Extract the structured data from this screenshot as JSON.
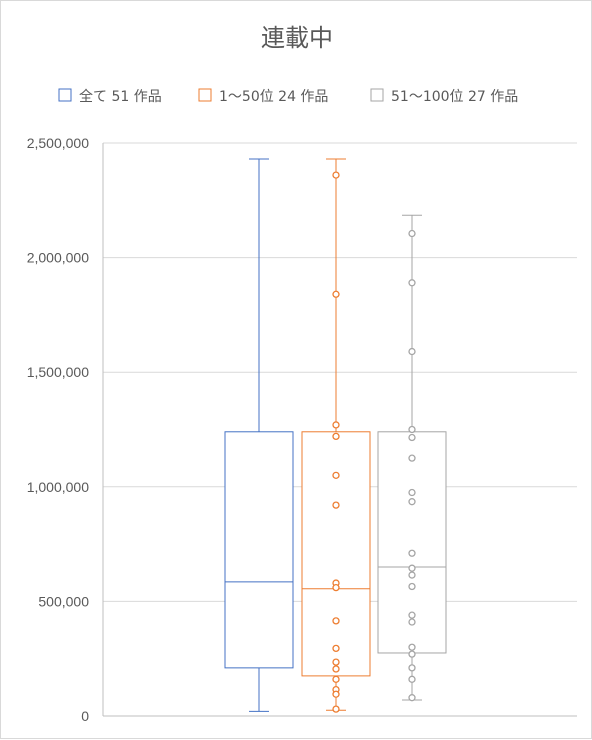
{
  "chart_data": {
    "type": "box",
    "title": "連載中",
    "ylim": [
      0,
      2500000
    ],
    "y_ticks": [
      "0",
      "500,000",
      "1,000,000",
      "1,500,000",
      "2,000,000",
      "2,500,000"
    ],
    "y_tick_values": [
      0,
      500000,
      1000000,
      1500000,
      2000000,
      2500000
    ],
    "grid": true,
    "legend_position": "top",
    "series": [
      {
        "name": "全て 51 作品",
        "color": "#4472c4",
        "min": 20000,
        "q1": 210000,
        "median": 585000,
        "q3": 1240000,
        "max": 2430000,
        "points": []
      },
      {
        "name": "1～50位 24 作品",
        "color": "#ed7d31",
        "min": 25000,
        "q1": 175000,
        "median": 555000,
        "q3": 1240000,
        "max": 2430000,
        "points": [
          2360000,
          1840000,
          1270000,
          1220000,
          1050000,
          920000,
          580000,
          560000,
          415000,
          295000,
          235000,
          205000,
          160000,
          115000,
          95000,
          30000
        ]
      },
      {
        "name": "51～100位 27 作品",
        "color": "#a5a5a5",
        "min": 70000,
        "q1": 275000,
        "median": 650000,
        "q3": 1240000,
        "max": 2185000,
        "points": [
          2105000,
          1890000,
          1590000,
          1250000,
          1215000,
          1125000,
          975000,
          935000,
          710000,
          645000,
          615000,
          565000,
          440000,
          410000,
          300000,
          270000,
          210000,
          160000,
          80000
        ]
      }
    ]
  }
}
